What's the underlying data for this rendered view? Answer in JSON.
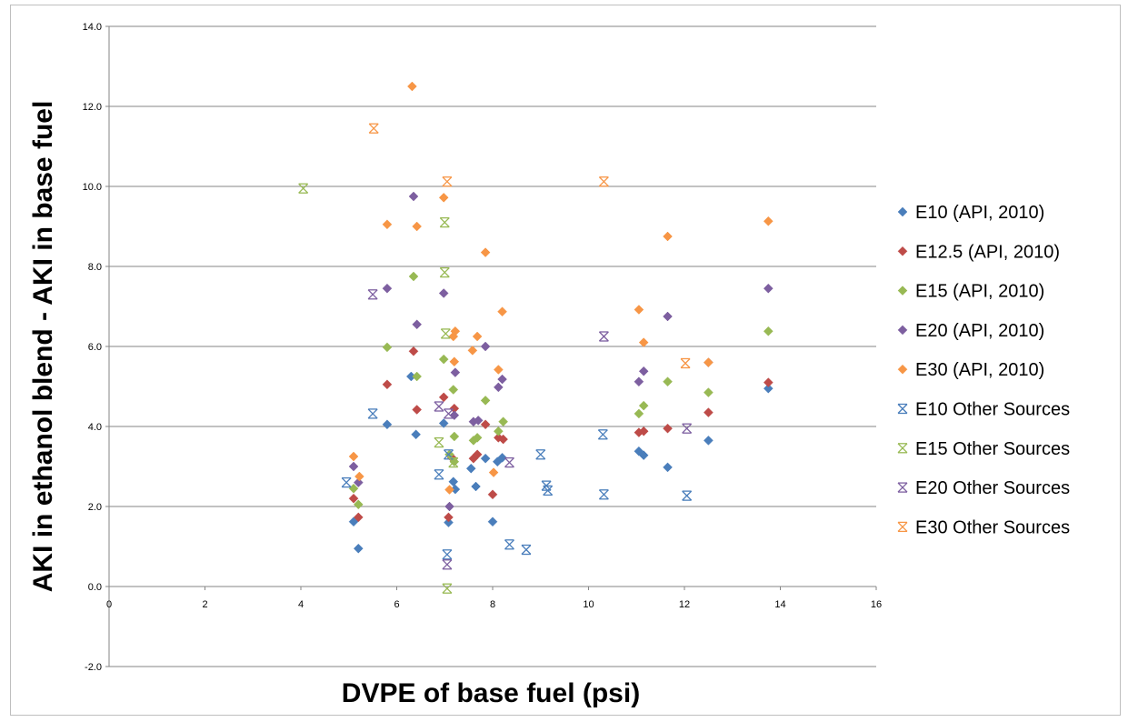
{
  "chart_data": {
    "type": "scatter",
    "title": "",
    "xlabel": "DVPE of base fuel (psi)",
    "ylabel": "AKI in ethanol blend - AKI in base fuel",
    "xlim": [
      0,
      16
    ],
    "ylim": [
      -2,
      14
    ],
    "x_ticks": [
      "0",
      "2",
      "4",
      "6",
      "8",
      "10",
      "12",
      "14",
      "16"
    ],
    "y_ticks": [
      "-2.0",
      "0.0",
      "2.0",
      "4.0",
      "6.0",
      "8.0",
      "10.0",
      "12.0",
      "14.0"
    ],
    "grid": "horizontal",
    "legend_position": "right",
    "series": [
      {
        "name": "E10 (API, 2010)",
        "color": "#4a7ebb",
        "marker": "diamond",
        "points": [
          [
            5.1,
            1.62
          ],
          [
            5.2,
            0.95
          ],
          [
            5.8,
            4.05
          ],
          [
            6.3,
            5.25
          ],
          [
            6.4,
            3.8
          ],
          [
            6.98,
            4.08
          ],
          [
            7.08,
            1.6
          ],
          [
            7.18,
            2.62
          ],
          [
            7.22,
            2.43
          ],
          [
            7.55,
            2.95
          ],
          [
            7.65,
            2.5
          ],
          [
            7.85,
            3.2
          ],
          [
            8.0,
            1.62
          ],
          [
            8.1,
            3.12
          ],
          [
            8.2,
            3.22
          ],
          [
            11.05,
            3.38
          ],
          [
            11.15,
            3.28
          ],
          [
            11.65,
            2.98
          ],
          [
            12.5,
            3.65
          ],
          [
            13.75,
            4.95
          ]
        ]
      },
      {
        "name": "E12.5 (API, 2010)",
        "color": "#be4b48",
        "marker": "diamond",
        "points": [
          [
            5.1,
            2.2
          ],
          [
            5.2,
            1.73
          ],
          [
            5.8,
            5.05
          ],
          [
            6.35,
            5.88
          ],
          [
            6.42,
            4.42
          ],
          [
            6.98,
            4.73
          ],
          [
            7.08,
            1.73
          ],
          [
            7.15,
            3.22
          ],
          [
            7.2,
            4.45
          ],
          [
            7.6,
            3.2
          ],
          [
            7.68,
            3.3
          ],
          [
            7.85,
            4.05
          ],
          [
            8.0,
            2.3
          ],
          [
            8.12,
            3.72
          ],
          [
            8.22,
            3.68
          ],
          [
            11.05,
            3.85
          ],
          [
            11.15,
            3.88
          ],
          [
            11.65,
            3.95
          ],
          [
            12.5,
            4.35
          ],
          [
            13.75,
            5.1
          ]
        ]
      },
      {
        "name": "E15 (API, 2010)",
        "color": "#98b954",
        "marker": "diamond",
        "points": [
          [
            5.1,
            2.45
          ],
          [
            5.2,
            2.05
          ],
          [
            5.8,
            5.98
          ],
          [
            6.35,
            7.75
          ],
          [
            6.42,
            5.25
          ],
          [
            6.98,
            5.68
          ],
          [
            7.1,
            3.3
          ],
          [
            7.2,
            3.75
          ],
          [
            7.18,
            4.92
          ],
          [
            7.2,
            3.12
          ],
          [
            7.6,
            3.65
          ],
          [
            7.68,
            3.72
          ],
          [
            7.85,
            4.65
          ],
          [
            8.12,
            3.88
          ],
          [
            8.22,
            4.12
          ],
          [
            11.05,
            4.32
          ],
          [
            11.15,
            4.52
          ],
          [
            11.65,
            5.12
          ],
          [
            12.5,
            4.85
          ],
          [
            13.75,
            6.38
          ]
        ]
      },
      {
        "name": "E20 (API, 2010)",
        "color": "#7d5fa0",
        "marker": "diamond",
        "points": [
          [
            5.1,
            3.0
          ],
          [
            5.2,
            2.6
          ],
          [
            5.8,
            7.45
          ],
          [
            6.35,
            9.75
          ],
          [
            6.42,
            6.55
          ],
          [
            6.98,
            7.33
          ],
          [
            7.1,
            2.0
          ],
          [
            7.2,
            4.28
          ],
          [
            7.22,
            5.35
          ],
          [
            7.6,
            4.12
          ],
          [
            7.7,
            4.15
          ],
          [
            7.85,
            6.0
          ],
          [
            8.12,
            4.98
          ],
          [
            8.2,
            5.18
          ],
          [
            11.05,
            5.12
          ],
          [
            11.15,
            5.38
          ],
          [
            11.65,
            6.75
          ],
          [
            12.5,
            5.6
          ],
          [
            13.75,
            7.45
          ]
        ]
      },
      {
        "name": "E30 (API, 2010)",
        "color": "#f79646",
        "marker": "diamond",
        "points": [
          [
            5.1,
            3.25
          ],
          [
            5.22,
            2.75
          ],
          [
            5.8,
            9.05
          ],
          [
            6.32,
            12.5
          ],
          [
            6.42,
            9.0
          ],
          [
            6.98,
            9.72
          ],
          [
            7.1,
            2.42
          ],
          [
            7.18,
            6.25
          ],
          [
            7.22,
            6.38
          ],
          [
            7.2,
            5.62
          ],
          [
            7.58,
            5.9
          ],
          [
            7.68,
            6.25
          ],
          [
            7.85,
            8.35
          ],
          [
            8.02,
            2.85
          ],
          [
            8.12,
            5.42
          ],
          [
            8.2,
            6.87
          ],
          [
            11.05,
            6.92
          ],
          [
            11.15,
            6.1
          ],
          [
            11.65,
            8.75
          ],
          [
            12.5,
            5.6
          ],
          [
            13.75,
            9.13
          ]
        ]
      },
      {
        "name": "E10 Other Sources",
        "color": "#4a7ebb",
        "marker": "star",
        "points": [
          [
            4.95,
            2.6
          ],
          [
            5.5,
            4.32
          ],
          [
            6.88,
            2.8
          ],
          [
            7.05,
            0.8
          ],
          [
            7.08,
            3.3
          ],
          [
            8.35,
            1.05
          ],
          [
            8.7,
            0.92
          ],
          [
            9.0,
            3.3
          ],
          [
            9.12,
            2.52
          ],
          [
            9.15,
            2.4
          ],
          [
            10.3,
            3.8
          ],
          [
            10.32,
            2.3
          ],
          [
            12.05,
            2.27
          ]
        ]
      },
      {
        "name": "E15 Other Sources",
        "color": "#98b954",
        "marker": "star",
        "points": [
          [
            4.05,
            9.95
          ],
          [
            6.88,
            3.6
          ],
          [
            7.0,
            9.1
          ],
          [
            7.0,
            7.85
          ],
          [
            7.02,
            6.32
          ],
          [
            7.05,
            -0.05
          ],
          [
            7.18,
            3.1
          ]
        ]
      },
      {
        "name": "E20 Other Sources",
        "color": "#7d5fa0",
        "marker": "star",
        "points": [
          [
            5.5,
            7.3
          ],
          [
            6.88,
            4.5
          ],
          [
            7.05,
            0.55
          ],
          [
            7.08,
            4.32
          ],
          [
            8.35,
            3.1
          ],
          [
            10.32,
            6.25
          ],
          [
            12.05,
            3.95
          ]
        ]
      },
      {
        "name": "E30 Other Sources",
        "color": "#f79646",
        "marker": "star",
        "points": [
          [
            5.52,
            11.45
          ],
          [
            7.05,
            10.12
          ],
          [
            10.32,
            10.12
          ],
          [
            12.02,
            5.58
          ]
        ]
      }
    ]
  }
}
